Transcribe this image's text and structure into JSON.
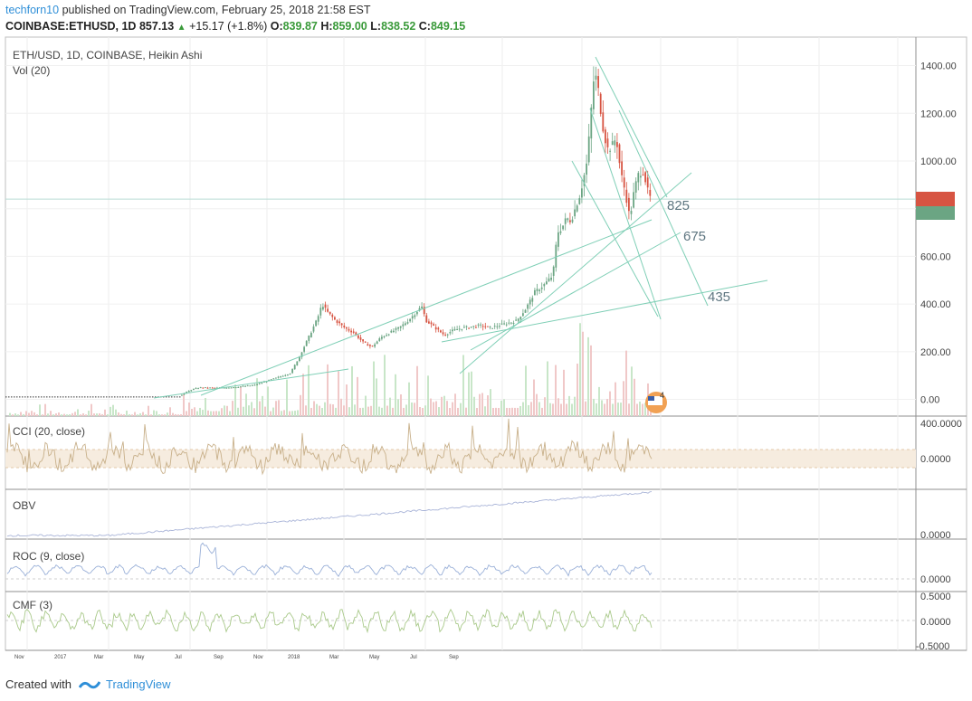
{
  "header": {
    "author": "techforn10",
    "published": "published on TradingView.com, February 25, 2018 21:58 EST",
    "symbol_line": "COINBASE:ETHUSD, 1D",
    "last": "857.13",
    "change": "+15.17 (+1.8%)",
    "o_label": "O:",
    "o": "839.87",
    "h_label": "H:",
    "h": "859.00",
    "l_label": "L:",
    "l": "838.52",
    "c_label": "C:",
    "c": "849.15"
  },
  "footer": {
    "created": "Created with",
    "brand": "TradingView"
  },
  "colors": {
    "up": "#6ba583",
    "down": "#d75442",
    "trend": "#7fcfb6",
    "price_line": "#b9dcd4",
    "cci": "#c8b08a",
    "obv": "#a9b4d8",
    "roc": "#9ab0d8",
    "cmf": "#a9c98a",
    "vol_up": "#c8e6c8",
    "vol_down": "#f0c8c8"
  },
  "chart_data": [
    {
      "type": "candlestick",
      "title": "ETH/USD, 1D, COINBASE, Heikin Ashi",
      "subtitle": "Vol (20)",
      "yticks": [
        "1400.00",
        "1200.00",
        "1000.00",
        "800.00",
        "600.00",
        "400.00",
        "200.00",
        "0.00"
      ],
      "ytick_values": [
        1400,
        1200,
        1000,
        800,
        600,
        400,
        200,
        0
      ],
      "ylim": [
        -70,
        1440
      ],
      "xticks": [
        "Nov",
        "2017",
        "Mar",
        "May",
        "Jul",
        "Sep",
        "Nov",
        "2018",
        "Mar",
        "May",
        "Jul",
        "Sep"
      ],
      "levels": [
        {
          "label": "825",
          "value": 825
        },
        {
          "label": "675",
          "value": 675
        },
        {
          "label": "435",
          "value": 435
        }
      ],
      "events_badge": "4",
      "price_points": [
        [
          0,
          10
        ],
        [
          40,
          10
        ],
        [
          80,
          10
        ],
        [
          120,
          12
        ],
        [
          160,
          12
        ],
        [
          180,
          14
        ],
        [
          200,
          20
        ],
        [
          210,
          40
        ],
        [
          220,
          50
        ],
        [
          240,
          48
        ],
        [
          260,
          52
        ],
        [
          280,
          60
        ],
        [
          300,
          85
        ],
        [
          320,
          110
        ],
        [
          330,
          180
        ],
        [
          340,
          260
        ],
        [
          350,
          340
        ],
        [
          355,
          400
        ],
        [
          360,
          370
        ],
        [
          370,
          330
        ],
        [
          380,
          300
        ],
        [
          390,
          280
        ],
        [
          400,
          240
        ],
        [
          410,
          220
        ],
        [
          420,
          260
        ],
        [
          430,
          280
        ],
        [
          440,
          300
        ],
        [
          450,
          330
        ],
        [
          460,
          370
        ],
        [
          465,
          390
        ],
        [
          470,
          330
        ],
        [
          480,
          300
        ],
        [
          490,
          270
        ],
        [
          500,
          290
        ],
        [
          510,
          300
        ],
        [
          520,
          305
        ],
        [
          530,
          310
        ],
        [
          540,
          300
        ],
        [
          550,
          310
        ],
        [
          560,
          320
        ],
        [
          570,
          330
        ],
        [
          580,
          380
        ],
        [
          590,
          450
        ],
        [
          600,
          480
        ],
        [
          610,
          520
        ],
        [
          615,
          700
        ],
        [
          620,
          720
        ],
        [
          625,
          760
        ],
        [
          630,
          750
        ],
        [
          640,
          860
        ],
        [
          648,
          1000
        ],
        [
          652,
          1200
        ],
        [
          656,
          1380
        ],
        [
          660,
          1300
        ],
        [
          665,
          1150
        ],
        [
          670,
          1050
        ],
        [
          675,
          1060
        ],
        [
          680,
          1100
        ],
        [
          685,
          950
        ],
        [
          690,
          870
        ],
        [
          695,
          760
        ],
        [
          700,
          880
        ],
        [
          705,
          950
        ],
        [
          710,
          960
        ],
        [
          715,
          870
        ],
        [
          720,
          820
        ]
      ]
    },
    {
      "type": "line",
      "title": "CCI (20, close)",
      "yticks": [
        "400.0000",
        "0.0000"
      ]
    },
    {
      "type": "line",
      "title": "OBV",
      "yticks": [
        "0.0000"
      ]
    },
    {
      "type": "line",
      "title": "ROC (9, close)",
      "yticks": [
        "0.0000"
      ]
    },
    {
      "type": "line",
      "title": "CMF (3)",
      "yticks": [
        "0.5000",
        "0.0000",
        "-0.5000"
      ]
    }
  ]
}
